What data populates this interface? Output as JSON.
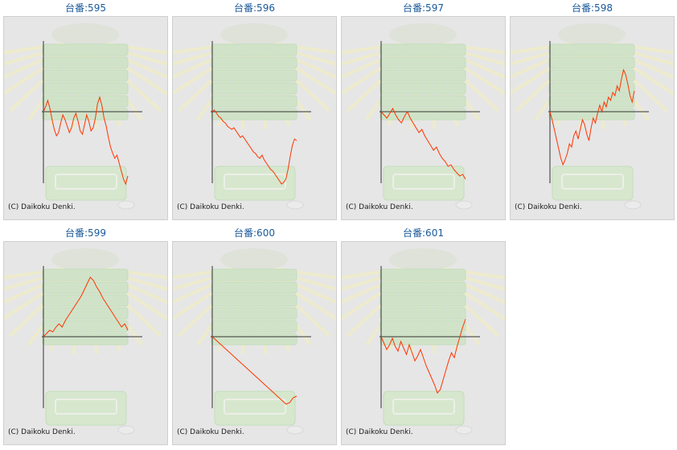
{
  "chart_data": [
    {
      "type": "line",
      "title": "台番:595",
      "copyright": "(C) Daikoku Denki.",
      "series_color": "#ff3300",
      "values": [
        0,
        6,
        14,
        4,
        -10,
        -22,
        -30,
        -26,
        -14,
        -4,
        -10,
        -18,
        -26,
        -20,
        -8,
        -2,
        -12,
        -24,
        -28,
        -16,
        -4,
        -12,
        -24,
        -20,
        -8,
        10,
        18,
        8,
        -8,
        -18,
        -32,
        -44,
        -52,
        -58,
        -54,
        -64,
        -74,
        -84,
        -90,
        -80
      ]
    },
    {
      "type": "line",
      "title": "台番:596",
      "copyright": "(C) Daikoku Denki.",
      "series_color": "#ff3300",
      "values": [
        0,
        2,
        -2,
        -6,
        -8,
        -12,
        -14,
        -18,
        -20,
        -22,
        -20,
        -24,
        -28,
        -32,
        -30,
        -34,
        -38,
        -42,
        -46,
        -50,
        -52,
        -56,
        -58,
        -54,
        -60,
        -64,
        -68,
        -72,
        -74,
        -78,
        -82,
        -86,
        -90,
        -88,
        -84,
        -72,
        -56,
        -42,
        -34,
        -36
      ]
    },
    {
      "type": "line",
      "title": "台番:597",
      "copyright": "(C) Daikoku Denki.",
      "series_color": "#ff3300",
      "values": [
        0,
        -4,
        -8,
        -2,
        4,
        -4,
        -10,
        -14,
        -6,
        0,
        -8,
        -14,
        -20,
        -26,
        -22,
        -30,
        -36,
        -42,
        -48,
        -44,
        -52,
        -58,
        -62,
        -68,
        -66,
        -72,
        -76,
        -80,
        -78,
        -84
      ]
    },
    {
      "type": "line",
      "title": "台番:598",
      "copyright": "(C) Daikoku Denki.",
      "series_color": "#ff3300",
      "values": [
        0,
        -10,
        -22,
        -34,
        -46,
        -58,
        -66,
        -60,
        -52,
        -40,
        -44,
        -30,
        -24,
        -34,
        -22,
        -10,
        -16,
        -28,
        -36,
        -20,
        -8,
        -14,
        -2,
        8,
        0,
        12,
        6,
        18,
        14,
        24,
        20,
        32,
        26,
        40,
        52,
        46,
        34,
        20,
        12,
        26
      ]
    },
    {
      "type": "line",
      "title": "台番:599",
      "copyright": "(C) Daikoku Denki.",
      "series_color": "#ff3300",
      "values": [
        0,
        4,
        8,
        6,
        12,
        16,
        12,
        20,
        26,
        32,
        38,
        44,
        50,
        58,
        66,
        74,
        70,
        62,
        56,
        48,
        42,
        36,
        30,
        24,
        18,
        12,
        16,
        8
      ]
    },
    {
      "type": "line",
      "title": "台番:600",
      "copyright": "(C) Daikoku Denki.",
      "series_color": "#ff3300",
      "values": [
        0,
        -4,
        -8,
        -12,
        -16,
        -20,
        -24,
        -28,
        -32,
        -36,
        -40,
        -44,
        -48,
        -52,
        -56,
        -60,
        -64,
        -68,
        -72,
        -76,
        -80,
        -84,
        -82,
        -76,
        -74
      ]
    },
    {
      "type": "line",
      "title": "台番:601",
      "copyright": "(C) Daikoku Denki.",
      "series_color": "#ff3300",
      "values": [
        0,
        -8,
        -16,
        -10,
        -2,
        -12,
        -18,
        -6,
        -14,
        -22,
        -10,
        -20,
        -30,
        -24,
        -16,
        -26,
        -36,
        -44,
        -52,
        -60,
        -70,
        -66,
        -54,
        -42,
        -30,
        -20,
        -26,
        -12,
        0,
        12,
        22
      ]
    }
  ]
}
